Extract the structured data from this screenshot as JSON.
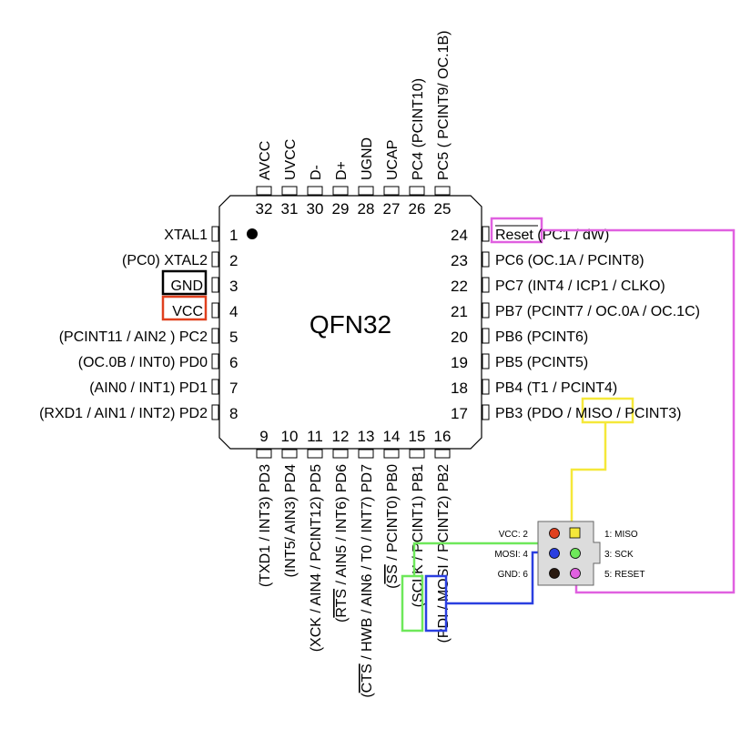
{
  "chip": {
    "package_label": "QFN32"
  },
  "pins_left": [
    {
      "num": "1",
      "label": "XTAL1"
    },
    {
      "num": "2",
      "label": "(PC0) XTAL2"
    },
    {
      "num": "3",
      "label": "GND"
    },
    {
      "num": "4",
      "label": "VCC"
    },
    {
      "num": "5",
      "label": "(PCINT11 / AIN2 ) PC2"
    },
    {
      "num": "6",
      "label": "(OC.0B / INT0) PD0"
    },
    {
      "num": "7",
      "label": "(AIN0 / INT1) PD1"
    },
    {
      "num": "8",
      "label": "(RXD1 / AIN1 / INT2) PD2"
    }
  ],
  "pins_right": [
    {
      "num": "24",
      "pre": "",
      "over": "Reset",
      "post": " (PC1 / dW)"
    },
    {
      "num": "23",
      "pre": "PC6 (OC.1A / PCINT8)",
      "over": "",
      "post": ""
    },
    {
      "num": "22",
      "pre": "PC7 (INT4 / ICP1 / CLKO)",
      "over": "",
      "post": ""
    },
    {
      "num": "21",
      "pre": "PB7 (PCINT7 / OC.0A / OC.1C)",
      "over": "",
      "post": ""
    },
    {
      "num": "20",
      "pre": "PB6 (PCINT6)",
      "over": "",
      "post": ""
    },
    {
      "num": "19",
      "pre": "PB5 (PCINT5)",
      "over": "",
      "post": ""
    },
    {
      "num": "18",
      "pre": "PB4 (T1 / PCINT4)",
      "over": "",
      "post": ""
    },
    {
      "num": "17",
      "pre": "PB3 (PDO / MISO / PCINT3)",
      "over": "",
      "post": ""
    }
  ],
  "pins_top": [
    {
      "num": "32",
      "label": "AVCC"
    },
    {
      "num": "31",
      "label": "UVCC"
    },
    {
      "num": "30",
      "label": "D-"
    },
    {
      "num": "29",
      "label": "D+"
    },
    {
      "num": "28",
      "label": "UGND"
    },
    {
      "num": "27",
      "label": "UCAP"
    },
    {
      "num": "26",
      "label": "PC4 (PCINT10)"
    },
    {
      "num": "25",
      "label": "PC5 ( PCINT9/ OC.1B)"
    }
  ],
  "pins_bottom": [
    {
      "num": "9",
      "pre": "(TXD1 / INT3) PD3",
      "over": "",
      "post": ""
    },
    {
      "num": "10",
      "pre": "(INT5/ AIN3) PD4",
      "over": "",
      "post": ""
    },
    {
      "num": "11",
      "pre": "(XCK / AIN4 / PCINT12) PD5",
      "over": "",
      "post": ""
    },
    {
      "num": "12",
      "pre": "(",
      "over": "RTS",
      "post": " / AIN5 / INT6) PD6"
    },
    {
      "num": "13",
      "pre": "(",
      "over": "CTS",
      "post": " / HWB / AIN6 / T0 / INT7) PD7"
    },
    {
      "num": "14",
      "pre": "(",
      "over": "SS",
      "post": " / PCINT0) PB0"
    },
    {
      "num": "15",
      "pre": "(SCLK / PCINT1) PB1",
      "over": "",
      "post": ""
    },
    {
      "num": "16",
      "pre": "(PDI / MOSI / PCINT2) PB2",
      "over": "",
      "post": ""
    }
  ],
  "isp_header": {
    "left_labels": [
      "VCC:  2",
      "MOSI: 4",
      "GND: 6"
    ],
    "right_labels": [
      "1: MISO",
      "3: SCK",
      "5: RESET"
    ]
  },
  "colors": {
    "gnd": "#000000",
    "vcc": "#e0401e",
    "reset": "#e060e0",
    "miso": "#f5e83a",
    "sck": "#6ee85a",
    "mosi": "#2a3fe0",
    "pin_vcc": "#e0401e",
    "pin_gnd": "#2a1a10"
  }
}
